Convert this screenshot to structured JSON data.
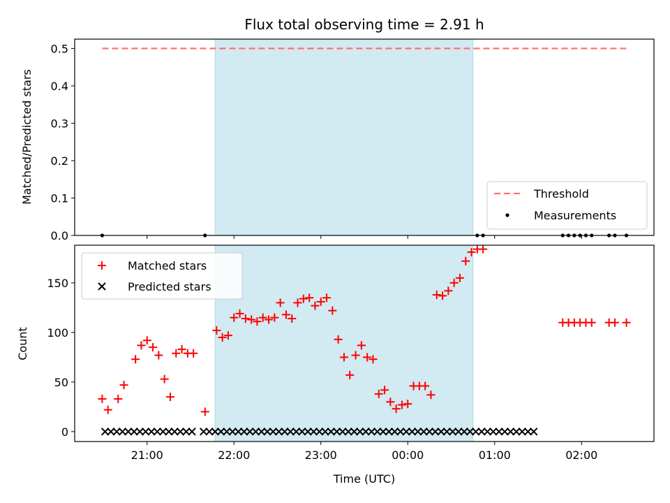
{
  "chart_data": [
    {
      "type": "scatter",
      "title": "Flux total observing time = 2.91 h",
      "xlabel": "",
      "ylabel": "Matched/Predicted stars",
      "ylim": [
        0,
        0.525
      ],
      "yticks": [
        "0.0",
        "0.1",
        "0.2",
        "0.3",
        "0.4",
        "0.5"
      ],
      "shaded_span": {
        "start": "21:47",
        "end": "00:45"
      },
      "threshold": {
        "name": "Threshold",
        "value": 0.5,
        "color": "#ff7070",
        "style": "dashed"
      },
      "measurements": {
        "name": "Measurements",
        "color": "#000000",
        "points": [
          {
            "x": "20:29",
            "y": 0
          },
          {
            "x": "21:40",
            "y": 0
          },
          {
            "x": "00:48",
            "y": 0
          },
          {
            "x": "00:52",
            "y": 0
          },
          {
            "x": "01:47",
            "y": 0
          },
          {
            "x": "01:51",
            "y": 0
          },
          {
            "x": "01:55",
            "y": 0
          },
          {
            "x": "01:59",
            "y": 0
          },
          {
            "x": "02:03",
            "y": 0
          },
          {
            "x": "02:07",
            "y": 0
          },
          {
            "x": "02:19",
            "y": 0
          },
          {
            "x": "02:23",
            "y": 0
          },
          {
            "x": "02:31",
            "y": 0
          }
        ]
      },
      "legend_placement": "lower-right",
      "grid": false
    },
    {
      "type": "scatter",
      "title": "",
      "xlabel": "Time (UTC)",
      "ylabel": "Count",
      "ylim": [
        -10,
        188
      ],
      "yticks": [
        "0",
        "50",
        "100",
        "150"
      ],
      "xticks": [
        "21:00",
        "22:00",
        "23:00",
        "00:00",
        "01:00",
        "02:00"
      ],
      "shaded_span": {
        "start": "21:47",
        "end": "00:45"
      },
      "legend_placement": "upper-left",
      "grid": false,
      "series": [
        {
          "name": "Matched stars",
          "marker": "plus",
          "color": "#ff0000",
          "points": [
            {
              "x": "20:29",
              "y": 33
            },
            {
              "x": "20:33",
              "y": 22
            },
            {
              "x": "20:40",
              "y": 33
            },
            {
              "x": "20:44",
              "y": 47
            },
            {
              "x": "20:52",
              "y": 73
            },
            {
              "x": "20:56",
              "y": 87
            },
            {
              "x": "21:00",
              "y": 92
            },
            {
              "x": "21:04",
              "y": 85
            },
            {
              "x": "21:08",
              "y": 77
            },
            {
              "x": "21:12",
              "y": 53
            },
            {
              "x": "21:16",
              "y": 35
            },
            {
              "x": "21:20",
              "y": 79
            },
            {
              "x": "21:24",
              "y": 83
            },
            {
              "x": "21:28",
              "y": 79
            },
            {
              "x": "21:32",
              "y": 79
            },
            {
              "x": "21:40",
              "y": 20
            },
            {
              "x": "21:48",
              "y": 102
            },
            {
              "x": "21:52",
              "y": 95
            },
            {
              "x": "21:56",
              "y": 97
            },
            {
              "x": "22:00",
              "y": 115
            },
            {
              "x": "22:04",
              "y": 119
            },
            {
              "x": "22:08",
              "y": 114
            },
            {
              "x": "22:12",
              "y": 113
            },
            {
              "x": "22:16",
              "y": 111
            },
            {
              "x": "22:20",
              "y": 115
            },
            {
              "x": "22:24",
              "y": 113
            },
            {
              "x": "22:28",
              "y": 115
            },
            {
              "x": "22:32",
              "y": 130
            },
            {
              "x": "22:36",
              "y": 118
            },
            {
              "x": "22:40",
              "y": 114
            },
            {
              "x": "22:44",
              "y": 130
            },
            {
              "x": "22:48",
              "y": 134
            },
            {
              "x": "22:52",
              "y": 135
            },
            {
              "x": "22:56",
              "y": 127
            },
            {
              "x": "23:00",
              "y": 131
            },
            {
              "x": "23:04",
              "y": 135
            },
            {
              "x": "23:08",
              "y": 122
            },
            {
              "x": "23:12",
              "y": 93
            },
            {
              "x": "23:16",
              "y": 75
            },
            {
              "x": "23:20",
              "y": 57
            },
            {
              "x": "23:24",
              "y": 77
            },
            {
              "x": "23:28",
              "y": 87
            },
            {
              "x": "23:32",
              "y": 75
            },
            {
              "x": "23:36",
              "y": 73
            },
            {
              "x": "23:40",
              "y": 38
            },
            {
              "x": "23:44",
              "y": 42
            },
            {
              "x": "23:48",
              "y": 30
            },
            {
              "x": "23:52",
              "y": 23
            },
            {
              "x": "23:56",
              "y": 27
            },
            {
              "x": "00:00",
              "y": 28
            },
            {
              "x": "00:04",
              "y": 46
            },
            {
              "x": "00:08",
              "y": 46
            },
            {
              "x": "00:12",
              "y": 46
            },
            {
              "x": "00:16",
              "y": 37
            },
            {
              "x": "00:20",
              "y": 138
            },
            {
              "x": "00:24",
              "y": 137
            },
            {
              "x": "00:28",
              "y": 142
            },
            {
              "x": "00:32",
              "y": 150
            },
            {
              "x": "00:36",
              "y": 155
            },
            {
              "x": "00:40",
              "y": 172
            },
            {
              "x": "00:44",
              "y": 181
            },
            {
              "x": "00:48",
              "y": 184
            },
            {
              "x": "00:52",
              "y": 184
            },
            {
              "x": "01:47",
              "y": 110
            },
            {
              "x": "01:51",
              "y": 110
            },
            {
              "x": "01:55",
              "y": 110
            },
            {
              "x": "01:59",
              "y": 110
            },
            {
              "x": "02:03",
              "y": 110
            },
            {
              "x": "02:07",
              "y": 110
            },
            {
              "x": "02:19",
              "y": 110
            },
            {
              "x": "02:23",
              "y": 110
            },
            {
              "x": "02:31",
              "y": 110
            }
          ]
        },
        {
          "name": "Predicted stars",
          "marker": "x",
          "color": "#000000",
          "points": [
            {
              "x": "20:31",
              "y": 0
            },
            {
              "x": "20:35",
              "y": 0
            },
            {
              "x": "20:39",
              "y": 0
            },
            {
              "x": "20:43",
              "y": 0
            },
            {
              "x": "20:47",
              "y": 0
            },
            {
              "x": "20:51",
              "y": 0
            },
            {
              "x": "20:55",
              "y": 0
            },
            {
              "x": "20:59",
              "y": 0
            },
            {
              "x": "21:03",
              "y": 0
            },
            {
              "x": "21:07",
              "y": 0
            },
            {
              "x": "21:11",
              "y": 0
            },
            {
              "x": "21:15",
              "y": 0
            },
            {
              "x": "21:19",
              "y": 0
            },
            {
              "x": "21:23",
              "y": 0
            },
            {
              "x": "21:27",
              "y": 0
            },
            {
              "x": "21:31",
              "y": 0
            },
            {
              "x": "21:39",
              "y": 0
            },
            {
              "x": "21:43",
              "y": 0
            },
            {
              "x": "21:47",
              "y": 0
            },
            {
              "x": "21:51",
              "y": 0
            },
            {
              "x": "21:55",
              "y": 0
            },
            {
              "x": "21:59",
              "y": 0
            },
            {
              "x": "22:03",
              "y": 0
            },
            {
              "x": "22:07",
              "y": 0
            },
            {
              "x": "22:11",
              "y": 0
            },
            {
              "x": "22:15",
              "y": 0
            },
            {
              "x": "22:19",
              "y": 0
            },
            {
              "x": "22:23",
              "y": 0
            },
            {
              "x": "22:27",
              "y": 0
            },
            {
              "x": "22:31",
              "y": 0
            },
            {
              "x": "22:35",
              "y": 0
            },
            {
              "x": "22:39",
              "y": 0
            },
            {
              "x": "22:43",
              "y": 0
            },
            {
              "x": "22:47",
              "y": 0
            },
            {
              "x": "22:51",
              "y": 0
            },
            {
              "x": "22:55",
              "y": 0
            },
            {
              "x": "22:59",
              "y": 0
            },
            {
              "x": "23:03",
              "y": 0
            },
            {
              "x": "23:07",
              "y": 0
            },
            {
              "x": "23:11",
              "y": 0
            },
            {
              "x": "23:15",
              "y": 0
            },
            {
              "x": "23:19",
              "y": 0
            },
            {
              "x": "23:23",
              "y": 0
            },
            {
              "x": "23:27",
              "y": 0
            },
            {
              "x": "23:31",
              "y": 0
            },
            {
              "x": "23:35",
              "y": 0
            },
            {
              "x": "23:39",
              "y": 0
            },
            {
              "x": "23:43",
              "y": 0
            },
            {
              "x": "23:47",
              "y": 0
            },
            {
              "x": "23:51",
              "y": 0
            },
            {
              "x": "23:55",
              "y": 0
            },
            {
              "x": "23:59",
              "y": 0
            },
            {
              "x": "00:03",
              "y": 0
            },
            {
              "x": "00:07",
              "y": 0
            },
            {
              "x": "00:11",
              "y": 0
            },
            {
              "x": "00:15",
              "y": 0
            },
            {
              "x": "00:19",
              "y": 0
            },
            {
              "x": "00:23",
              "y": 0
            },
            {
              "x": "00:27",
              "y": 0
            },
            {
              "x": "00:31",
              "y": 0
            },
            {
              "x": "00:35",
              "y": 0
            },
            {
              "x": "00:39",
              "y": 0
            },
            {
              "x": "00:43",
              "y": 0
            },
            {
              "x": "00:47",
              "y": 0
            },
            {
              "x": "00:51",
              "y": 0
            },
            {
              "x": "00:55",
              "y": 0
            },
            {
              "x": "00:59",
              "y": 0
            },
            {
              "x": "01:03",
              "y": 0
            },
            {
              "x": "01:07",
              "y": 0
            },
            {
              "x": "01:11",
              "y": 0
            },
            {
              "x": "01:15",
              "y": 0
            },
            {
              "x": "01:19",
              "y": 0
            },
            {
              "x": "01:23",
              "y": 0
            },
            {
              "x": "01:27",
              "y": 0
            }
          ]
        }
      ]
    }
  ],
  "colors": {
    "shade": "#add8e6",
    "threshold": "#ff7070",
    "matched": "#ff0000",
    "predicted": "#000000"
  }
}
